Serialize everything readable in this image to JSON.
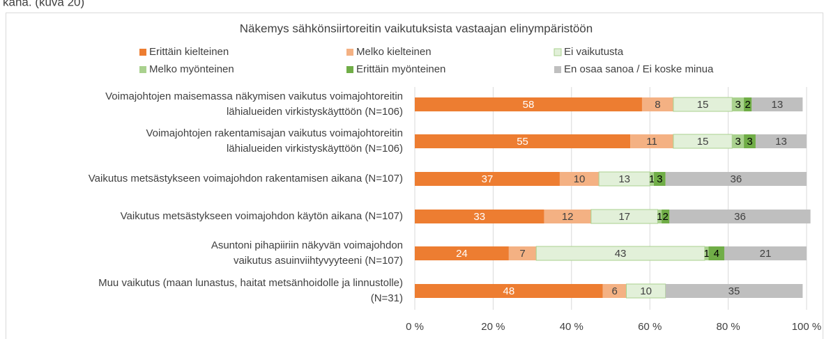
{
  "caption": "kana. (kuva 20)",
  "chart_data": {
    "type": "stacked-bar-horizontal",
    "title": "Näkemys sähkönsiirtoreitin vaikutuksista vastaajan elinympäristöön",
    "categories": [
      [
        "Voimajohtojen maisemassa näkymisen vaikutus voimajohtoreitin",
        "lähialueiden virkistyskäyttöön (N=106)"
      ],
      [
        "Voimajohtojen rakentamisajan vaikutus voimajohtoreitin",
        "lähialueiden virkistyskäyttöön (N=106)"
      ],
      [
        "Vaikutus metsästykseen voimajohdon rakentamisen aikana (N=107)"
      ],
      [
        "Vaikutus metsästykseen voimajohdon käytön aikana (N=107)"
      ],
      [
        "Asuntoni pihapiiriin näkyvän voimajohdon",
        "vaikutus asuinviihtyvyyteeni (N=107)"
      ],
      [
        "Muu vaikutus (maan lunastus, haitat metsänhoidolle ja linnustolle)",
        "(N=31)"
      ]
    ],
    "series": [
      {
        "name": "Erittäin kielteinen",
        "color": "#ED7D31",
        "values": [
          58,
          55,
          37,
          33,
          24,
          48
        ]
      },
      {
        "name": "Melko kielteinen",
        "color": "#F4B183",
        "values": [
          8,
          11,
          10,
          12,
          7,
          6
        ]
      },
      {
        "name": "Ei vaikutusta",
        "color": "#E2F0D9",
        "values": [
          15,
          15,
          13,
          17,
          43,
          10
        ]
      },
      {
        "name": "Melko myönteinen",
        "color": "#A9D18E",
        "values": [
          3,
          3,
          1,
          1,
          1,
          null
        ]
      },
      {
        "name": "Erittäin myönteinen",
        "color": "#70AD47",
        "values": [
          2,
          3,
          3,
          2,
          4,
          null
        ]
      },
      {
        "name": "En osaa sanoa / Ei koske minua",
        "color": "#BFBFBF",
        "values": [
          13,
          13,
          36,
          36,
          21,
          35
        ]
      }
    ],
    "xlim": [
      0,
      100
    ],
    "xticks": [
      {
        "value": 0,
        "label": "0 %"
      },
      {
        "value": 20,
        "label": "20 %"
      },
      {
        "value": 40,
        "label": "40 %"
      },
      {
        "value": 60,
        "label": "60 %"
      },
      {
        "value": 80,
        "label": "80 %"
      },
      {
        "value": 100,
        "label": "100 %"
      }
    ],
    "grid": true
  }
}
